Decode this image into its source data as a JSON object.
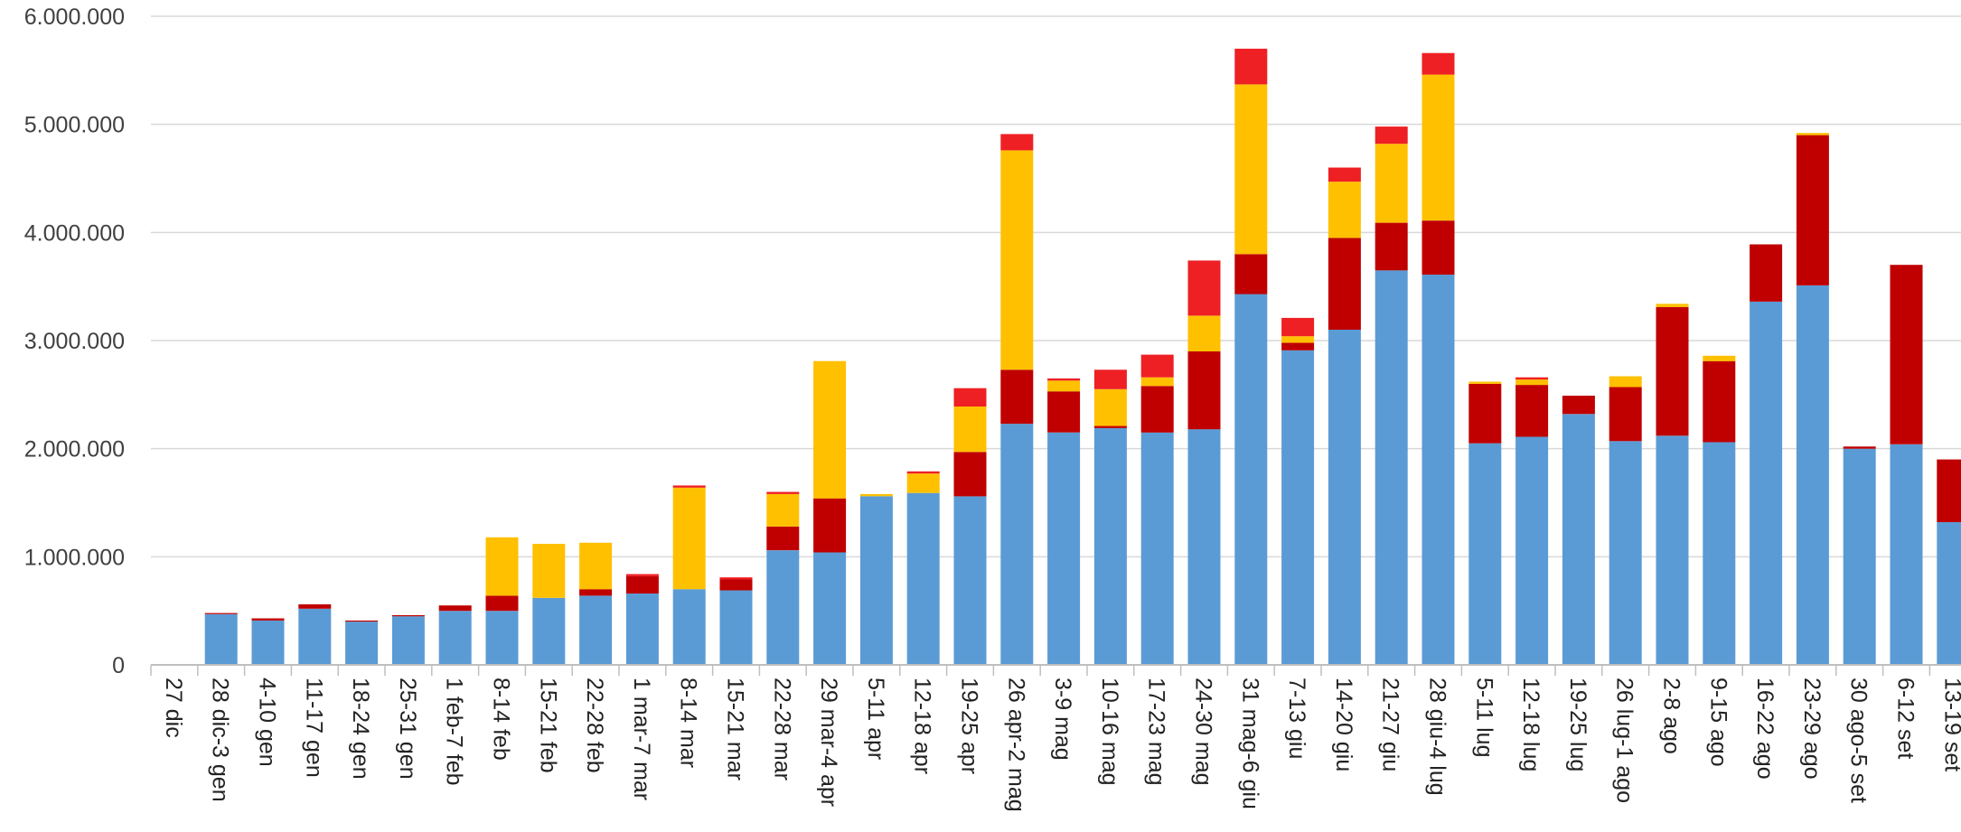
{
  "chart_data": {
    "type": "bar",
    "stacked": true,
    "title": "",
    "xlabel": "",
    "ylabel": "",
    "ylim": [
      0,
      6000000
    ],
    "y_ticks": [
      {
        "value": 0,
        "label": "0"
      },
      {
        "value": 1000000,
        "label": "1.000.000"
      },
      {
        "value": 2000000,
        "label": "2.000.000"
      },
      {
        "value": 3000000,
        "label": "3.000.000"
      },
      {
        "value": 4000000,
        "label": "4.000.000"
      },
      {
        "value": 5000000,
        "label": "5.000.000"
      },
      {
        "value": 6000000,
        "label": "6.000.000"
      }
    ],
    "grid": true,
    "legend": "none",
    "categories": [
      "27 dic",
      "28 dic-3 gen",
      "4-10 gen",
      "11-17 gen",
      "18-24 gen",
      "25-31 gen",
      "1 feb-7 feb",
      "8-14 feb",
      "15-21 feb",
      "22-28 feb",
      "1 mar-7 mar",
      "8-14 mar",
      "15-21 mar",
      "22-28 mar",
      "29 mar-4 apr",
      "5-11 apr",
      "12-18 apr",
      "19-25 apr",
      "26 apr-2 mag",
      "3-9 mag",
      "10-16 mag",
      "17-23 mag",
      "24-30 mag",
      "31 mag-6 giu",
      "7-13 giu",
      "14-20 giu",
      "21-27 giu",
      "28 giu-4 lug",
      "5-11 lug",
      "12-18 lug",
      "19-25 lug",
      "26 lug-1 ago",
      "2-8 ago",
      "9-15 ago",
      "16-22 ago",
      "23-29 ago",
      "30 ago-5 set",
      "6-12 set",
      "13-19 set"
    ],
    "series": [
      {
        "color": "#5b9bd5",
        "values": [
          0,
          470000,
          410000,
          520000,
          400000,
          450000,
          500000,
          500000,
          620000,
          640000,
          660000,
          700000,
          690000,
          1060000,
          1040000,
          1560000,
          1590000,
          1560000,
          2230000,
          2150000,
          2190000,
          2150000,
          2180000,
          3430000,
          2910000,
          3100000,
          3650000,
          3610000,
          2050000,
          2110000,
          2320000,
          2070000,
          2120000,
          2060000,
          3360000,
          3510000,
          2000000,
          2040000,
          1320000
        ]
      },
      {
        "color": "#c00000",
        "values": [
          0,
          10000,
          20000,
          40000,
          10000,
          10000,
          50000,
          140000,
          0,
          60000,
          160000,
          0,
          100000,
          220000,
          500000,
          0,
          0,
          410000,
          500000,
          380000,
          20000,
          430000,
          720000,
          370000,
          70000,
          850000,
          440000,
          500000,
          550000,
          480000,
          170000,
          500000,
          1190000,
          750000,
          530000,
          1390000,
          20000,
          1660000,
          580000
        ]
      },
      {
        "color": "#ffc000",
        "values": [
          0,
          0,
          0,
          0,
          0,
          0,
          0,
          540000,
          500000,
          430000,
          0,
          940000,
          0,
          300000,
          1270000,
          20000,
          180000,
          420000,
          2030000,
          100000,
          340000,
          80000,
          330000,
          1570000,
          60000,
          520000,
          730000,
          1350000,
          20000,
          50000,
          0,
          100000,
          30000,
          50000,
          0,
          20000,
          0,
          0,
          0
        ]
      },
      {
        "color": "#ee2024",
        "values": [
          0,
          0,
          0,
          0,
          0,
          0,
          0,
          0,
          0,
          0,
          20000,
          20000,
          20000,
          20000,
          0,
          0,
          20000,
          170000,
          150000,
          20000,
          180000,
          210000,
          510000,
          330000,
          170000,
          130000,
          160000,
          200000,
          0,
          20000,
          0,
          0,
          0,
          0,
          0,
          0,
          0,
          0,
          0
        ]
      }
    ]
  }
}
